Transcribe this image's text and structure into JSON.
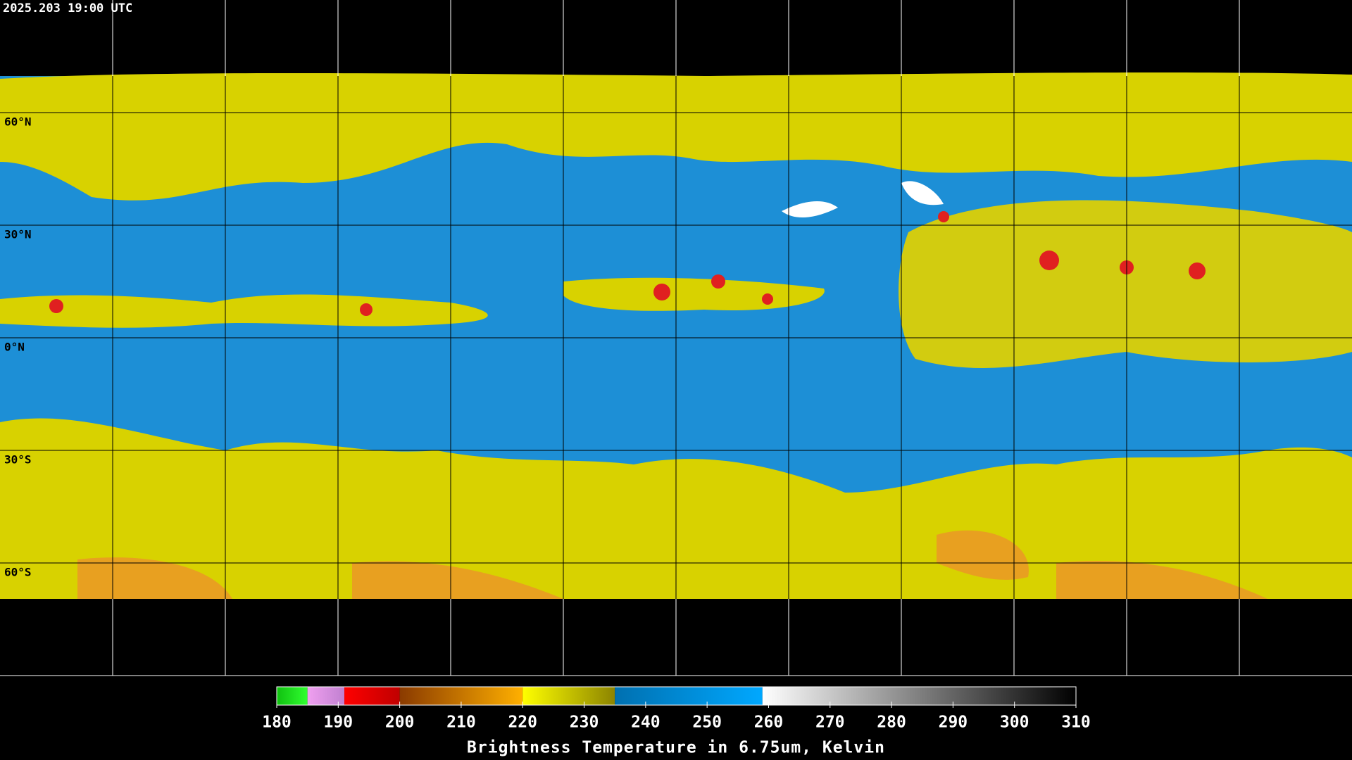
{
  "header": {
    "title": "2025.203 19:00 UTC"
  },
  "map": {
    "ylim": [
      -90,
      90
    ],
    "latitudes": [
      {
        "value": 60,
        "label": "60°N"
      },
      {
        "value": 30,
        "label": "30°N"
      },
      {
        "value": 0,
        "label": "0°N"
      },
      {
        "value": -30,
        "label": "30°S"
      },
      {
        "value": -60,
        "label": "60°S"
      }
    ]
  },
  "colorbar": {
    "label": "Brightness Temperature in 6.75um, Kelvin",
    "xlim": [
      180,
      310
    ],
    "ticks": [
      180,
      190,
      200,
      210,
      220,
      230,
      240,
      250,
      260,
      270,
      280,
      290,
      300,
      310
    ],
    "segments": [
      {
        "from": 180,
        "to": 185,
        "colors": [
          "#10c010",
          "#30ff30"
        ]
      },
      {
        "from": 185,
        "to": 191,
        "colors": [
          "#f0a0f0",
          "#c080d0"
        ]
      },
      {
        "from": 191,
        "to": 200,
        "colors": [
          "#ff0000",
          "#c00000"
        ]
      },
      {
        "from": 200,
        "to": 220,
        "colors": [
          "#8a3a00",
          "#ffb000"
        ]
      },
      {
        "from": 220,
        "to": 235,
        "colors": [
          "#ffff00",
          "#8c8400"
        ]
      },
      {
        "from": 235,
        "to": 259,
        "colors": [
          "#0070b0",
          "#00a8ff"
        ]
      },
      {
        "from": 259,
        "to": 310,
        "colors": [
          "#ffffff",
          "#000000"
        ]
      }
    ]
  }
}
